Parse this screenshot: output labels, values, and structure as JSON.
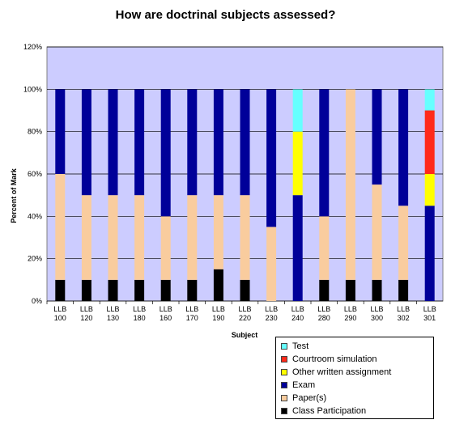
{
  "chart_data": {
    "type": "bar",
    "stacked": true,
    "title": "How are doctrinal subjects assessed?",
    "xlabel": "Subject",
    "ylabel": "Percent of Mark",
    "ylim": [
      0,
      120
    ],
    "yticks": [
      "0%",
      "20%",
      "40%",
      "60%",
      "80%",
      "100%",
      "120%"
    ],
    "grid": true,
    "legend_position": "bottom-right",
    "plot_background": "#ccccff",
    "categories": [
      [
        "LLB",
        "100"
      ],
      [
        "LLB",
        "120"
      ],
      [
        "LLB",
        "130"
      ],
      [
        "LLB",
        "180"
      ],
      [
        "LLB",
        "160"
      ],
      [
        "LLB",
        "170"
      ],
      [
        "LLB",
        "190"
      ],
      [
        "LLB",
        "220"
      ],
      [
        "LLB",
        "230"
      ],
      [
        "LLB",
        "240"
      ],
      [
        "LLB",
        "280"
      ],
      [
        "LLB",
        "290"
      ],
      [
        "LLB",
        "300"
      ],
      [
        "LLB",
        "302"
      ],
      [
        "LLB",
        "301"
      ]
    ],
    "series": [
      {
        "name": "Class Participation",
        "color": "#000000",
        "values": [
          10,
          10,
          10,
          10,
          10,
          10,
          15,
          10,
          0,
          0,
          10,
          10,
          10,
          10,
          0
        ]
      },
      {
        "name": "Paper(s)",
        "color": "#f9cc9e",
        "values": [
          50,
          40,
          40,
          40,
          30,
          40,
          35,
          40,
          35,
          0,
          30,
          90,
          45,
          35,
          0
        ]
      },
      {
        "name": "Exam",
        "color": "#000099",
        "values": [
          40,
          50,
          50,
          50,
          60,
          50,
          50,
          50,
          65,
          50,
          60,
          0,
          45,
          55,
          45
        ]
      },
      {
        "name": "Other written assignment",
        "color": "#ffff00",
        "values": [
          0,
          0,
          0,
          0,
          0,
          0,
          0,
          0,
          0,
          30,
          0,
          0,
          0,
          0,
          15
        ]
      },
      {
        "name": "Courtroom simulation",
        "color": "#ff2a1a",
        "values": [
          0,
          0,
          0,
          0,
          0,
          0,
          0,
          0,
          0,
          0,
          0,
          0,
          0,
          0,
          30
        ]
      },
      {
        "name": "Test",
        "color": "#66ffff",
        "values": [
          0,
          0,
          0,
          0,
          0,
          0,
          0,
          0,
          0,
          20,
          0,
          0,
          0,
          0,
          10
        ]
      }
    ]
  }
}
